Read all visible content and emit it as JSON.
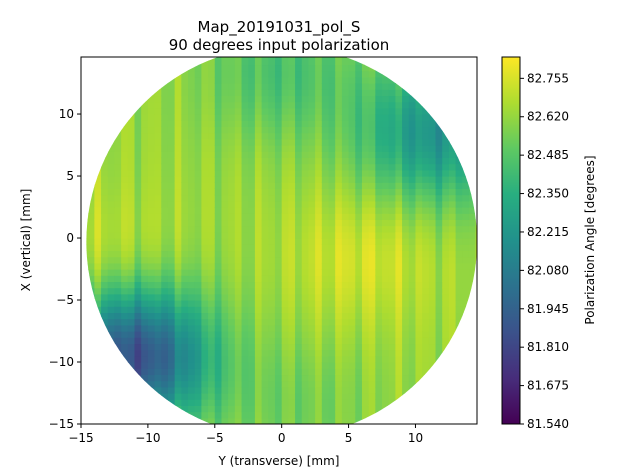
{
  "chart_data": {
    "type": "heatmap",
    "title": "Map_20191031_pol_S",
    "subtitle": "90 degrees input polarization",
    "xlabel": "Y (transverse) [mm]",
    "ylabel": "X (vertical) [mm]",
    "xlim": [
      -15,
      14.6
    ],
    "ylim": [
      -15,
      14.6
    ],
    "x_ticks": [
      -15,
      -10,
      -5,
      0,
      5,
      10
    ],
    "y_ticks": [
      -15,
      -10,
      -5,
      0,
      5,
      10
    ],
    "grid": false,
    "mask": "circular",
    "map_center": [
      0,
      -0.3
    ],
    "map_radius": 14.6,
    "colormap": "viridis",
    "colorbar": {
      "label": "Polarization Angle [degrees]",
      "min": 81.54,
      "max": 82.83,
      "ticks": [
        "82.755",
        "82.620",
        "82.485",
        "82.350",
        "82.215",
        "82.080",
        "81.945",
        "81.810",
        "81.675",
        "81.540"
      ]
    },
    "base_value": 82.63,
    "features": [
      {
        "region": "upper-right",
        "y": 11.5,
        "x": 8.5,
        "value": 82.2
      },
      {
        "region": "lower-left",
        "y": -11.0,
        "x": -9.5,
        "value": 81.85
      },
      {
        "region": "top",
        "y": 0.0,
        "x": 13.5,
        "value": 82.45
      },
      {
        "region": "center-right",
        "y": 6.0,
        "x": -1.5,
        "value": 82.75
      },
      {
        "region": "left",
        "y": -13.5,
        "x": -2.0,
        "value": 82.72
      },
      {
        "region": "bottom-center",
        "y": 1.0,
        "x": -13.5,
        "value": 82.55
      }
    ]
  }
}
